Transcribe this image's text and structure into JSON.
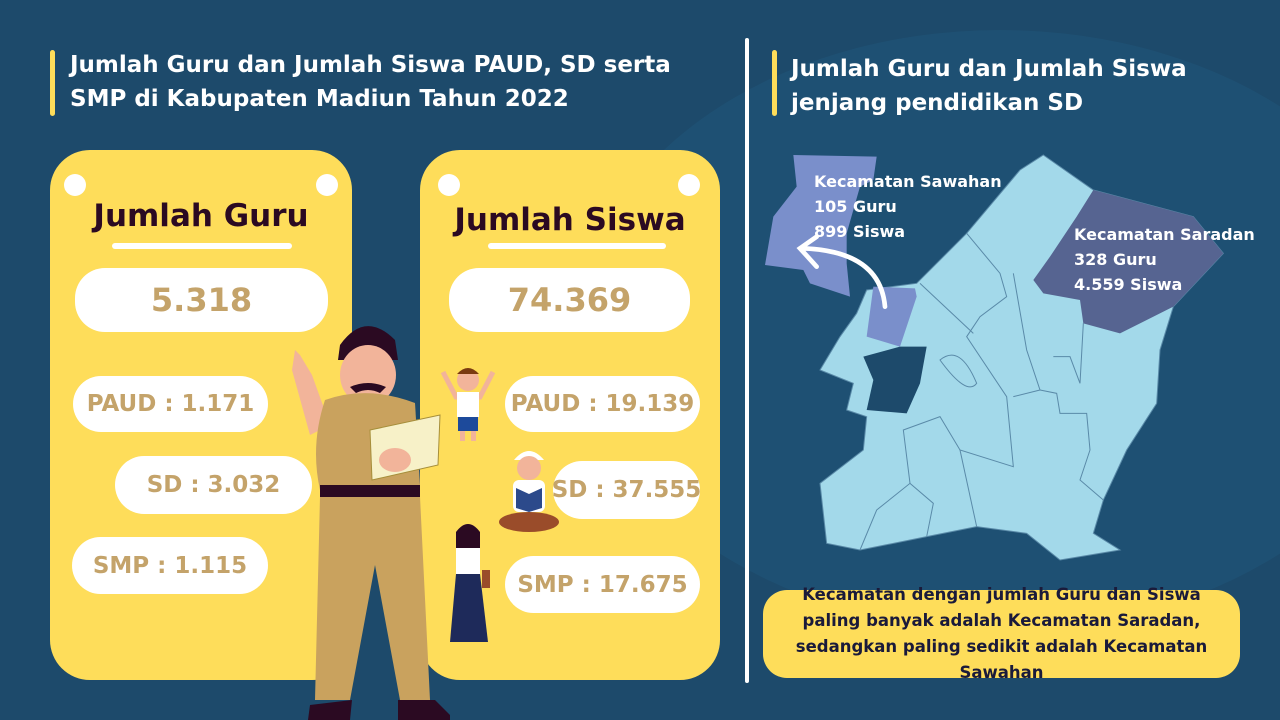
{
  "left_title": "Jumlah Guru dan Jumlah Siswa PAUD, SD serta SMP di Kabupaten Madiun Tahun 2022",
  "right_title": "Jumlah Guru dan Jumlah Siswa jenjang pendidikan SD",
  "guru": {
    "title": "Jumlah Guru",
    "total": "5.318",
    "paud": "PAUD : 1.171",
    "sd": "SD : 3.032",
    "smp": "SMP : 1.115"
  },
  "siswa": {
    "title": "Jumlah Siswa",
    "total": "74.369",
    "paud": "PAUD : 19.139",
    "sd": "SD : 37.555",
    "smp": "SMP : 17.675"
  },
  "map": {
    "sawahan": {
      "name": "Kecamatan Sawahan",
      "guru": "105 Guru",
      "siswa": "899 Siswa",
      "color": "#7a8fcb"
    },
    "saradan": {
      "name": "Kecamatan Saradan",
      "guru": "328 Guru",
      "siswa": "4.559 Siswa",
      "color": "#566491"
    },
    "base_color": "#a3d9ea"
  },
  "note": "Kecamatan dengan jumlah Guru dan Siswa paling banyak adalah Kecamatan Saradan, sedangkan paling sedikit adalah Kecamatan Sawahan",
  "colors": {
    "background": "#1d4a6b",
    "card": "#fedd5a",
    "number": "#c4a36a",
    "heading": "#2b0a22"
  }
}
